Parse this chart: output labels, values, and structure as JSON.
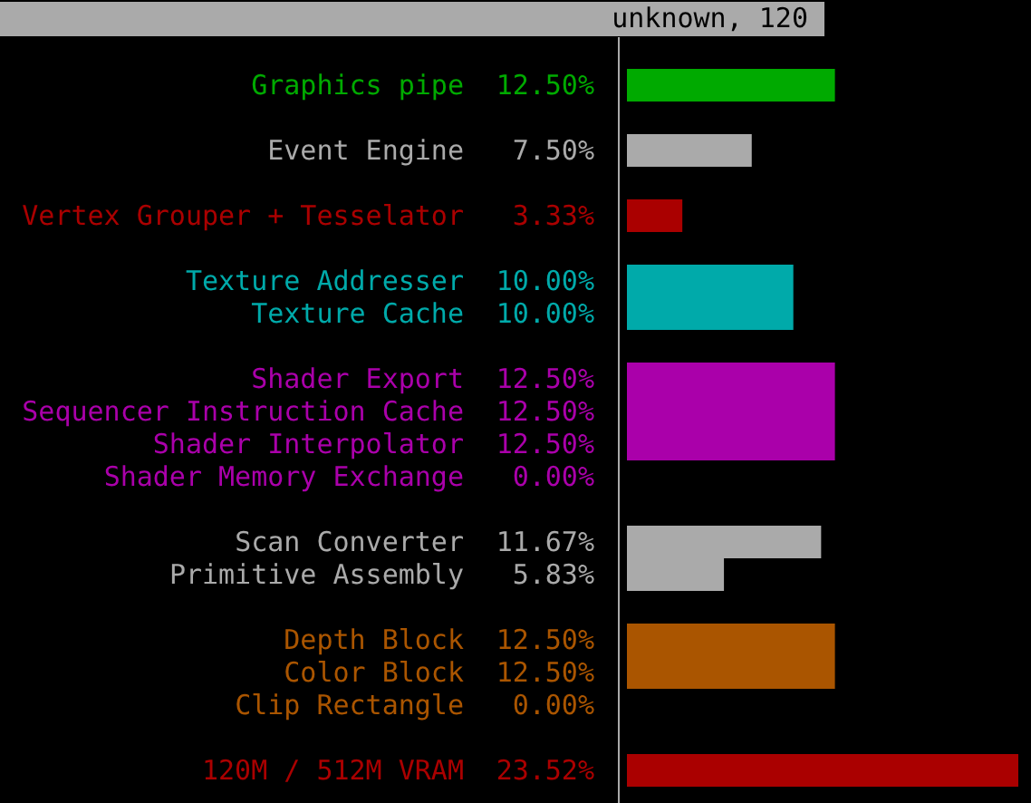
{
  "chart_data": {
    "type": "bar",
    "orientation": "horizontal",
    "title": "unknown, 120",
    "categories": [
      "Graphics pipe",
      "Event Engine",
      "Vertex Grouper + Tesselator",
      "Texture Addresser",
      "Texture Cache",
      "Shader Export",
      "Sequencer Instruction Cache",
      "Shader Interpolator",
      "Shader Memory Exchange",
      "Scan Converter",
      "Primitive Assembly",
      "Depth Block",
      "Color Block",
      "Clip Rectangle",
      "120M / 512M VRAM"
    ],
    "values": [
      12.5,
      7.5,
      3.33,
      10.0,
      10.0,
      12.5,
      12.5,
      12.5,
      0.0,
      11.67,
      5.83,
      12.5,
      12.5,
      0.0,
      23.52
    ],
    "value_labels": [
      "12.50%",
      "7.50%",
      "3.33%",
      "10.00%",
      "10.00%",
      "12.50%",
      "12.50%",
      "12.50%",
      "0.00%",
      "11.67%",
      "5.83%",
      "12.50%",
      "12.50%",
      "0.00%",
      "23.52%"
    ],
    "colors": [
      "#00aa00",
      "#aaaaaa",
      "#aa0000",
      "#00aaaa",
      "#00aaaa",
      "#aa00aa",
      "#aa00aa",
      "#aa00aa",
      "#aa00aa",
      "#aaaaaa",
      "#aaaaaa",
      "#aa5500",
      "#aa5500",
      "#aa5500",
      "#aa0000"
    ]
  }
}
